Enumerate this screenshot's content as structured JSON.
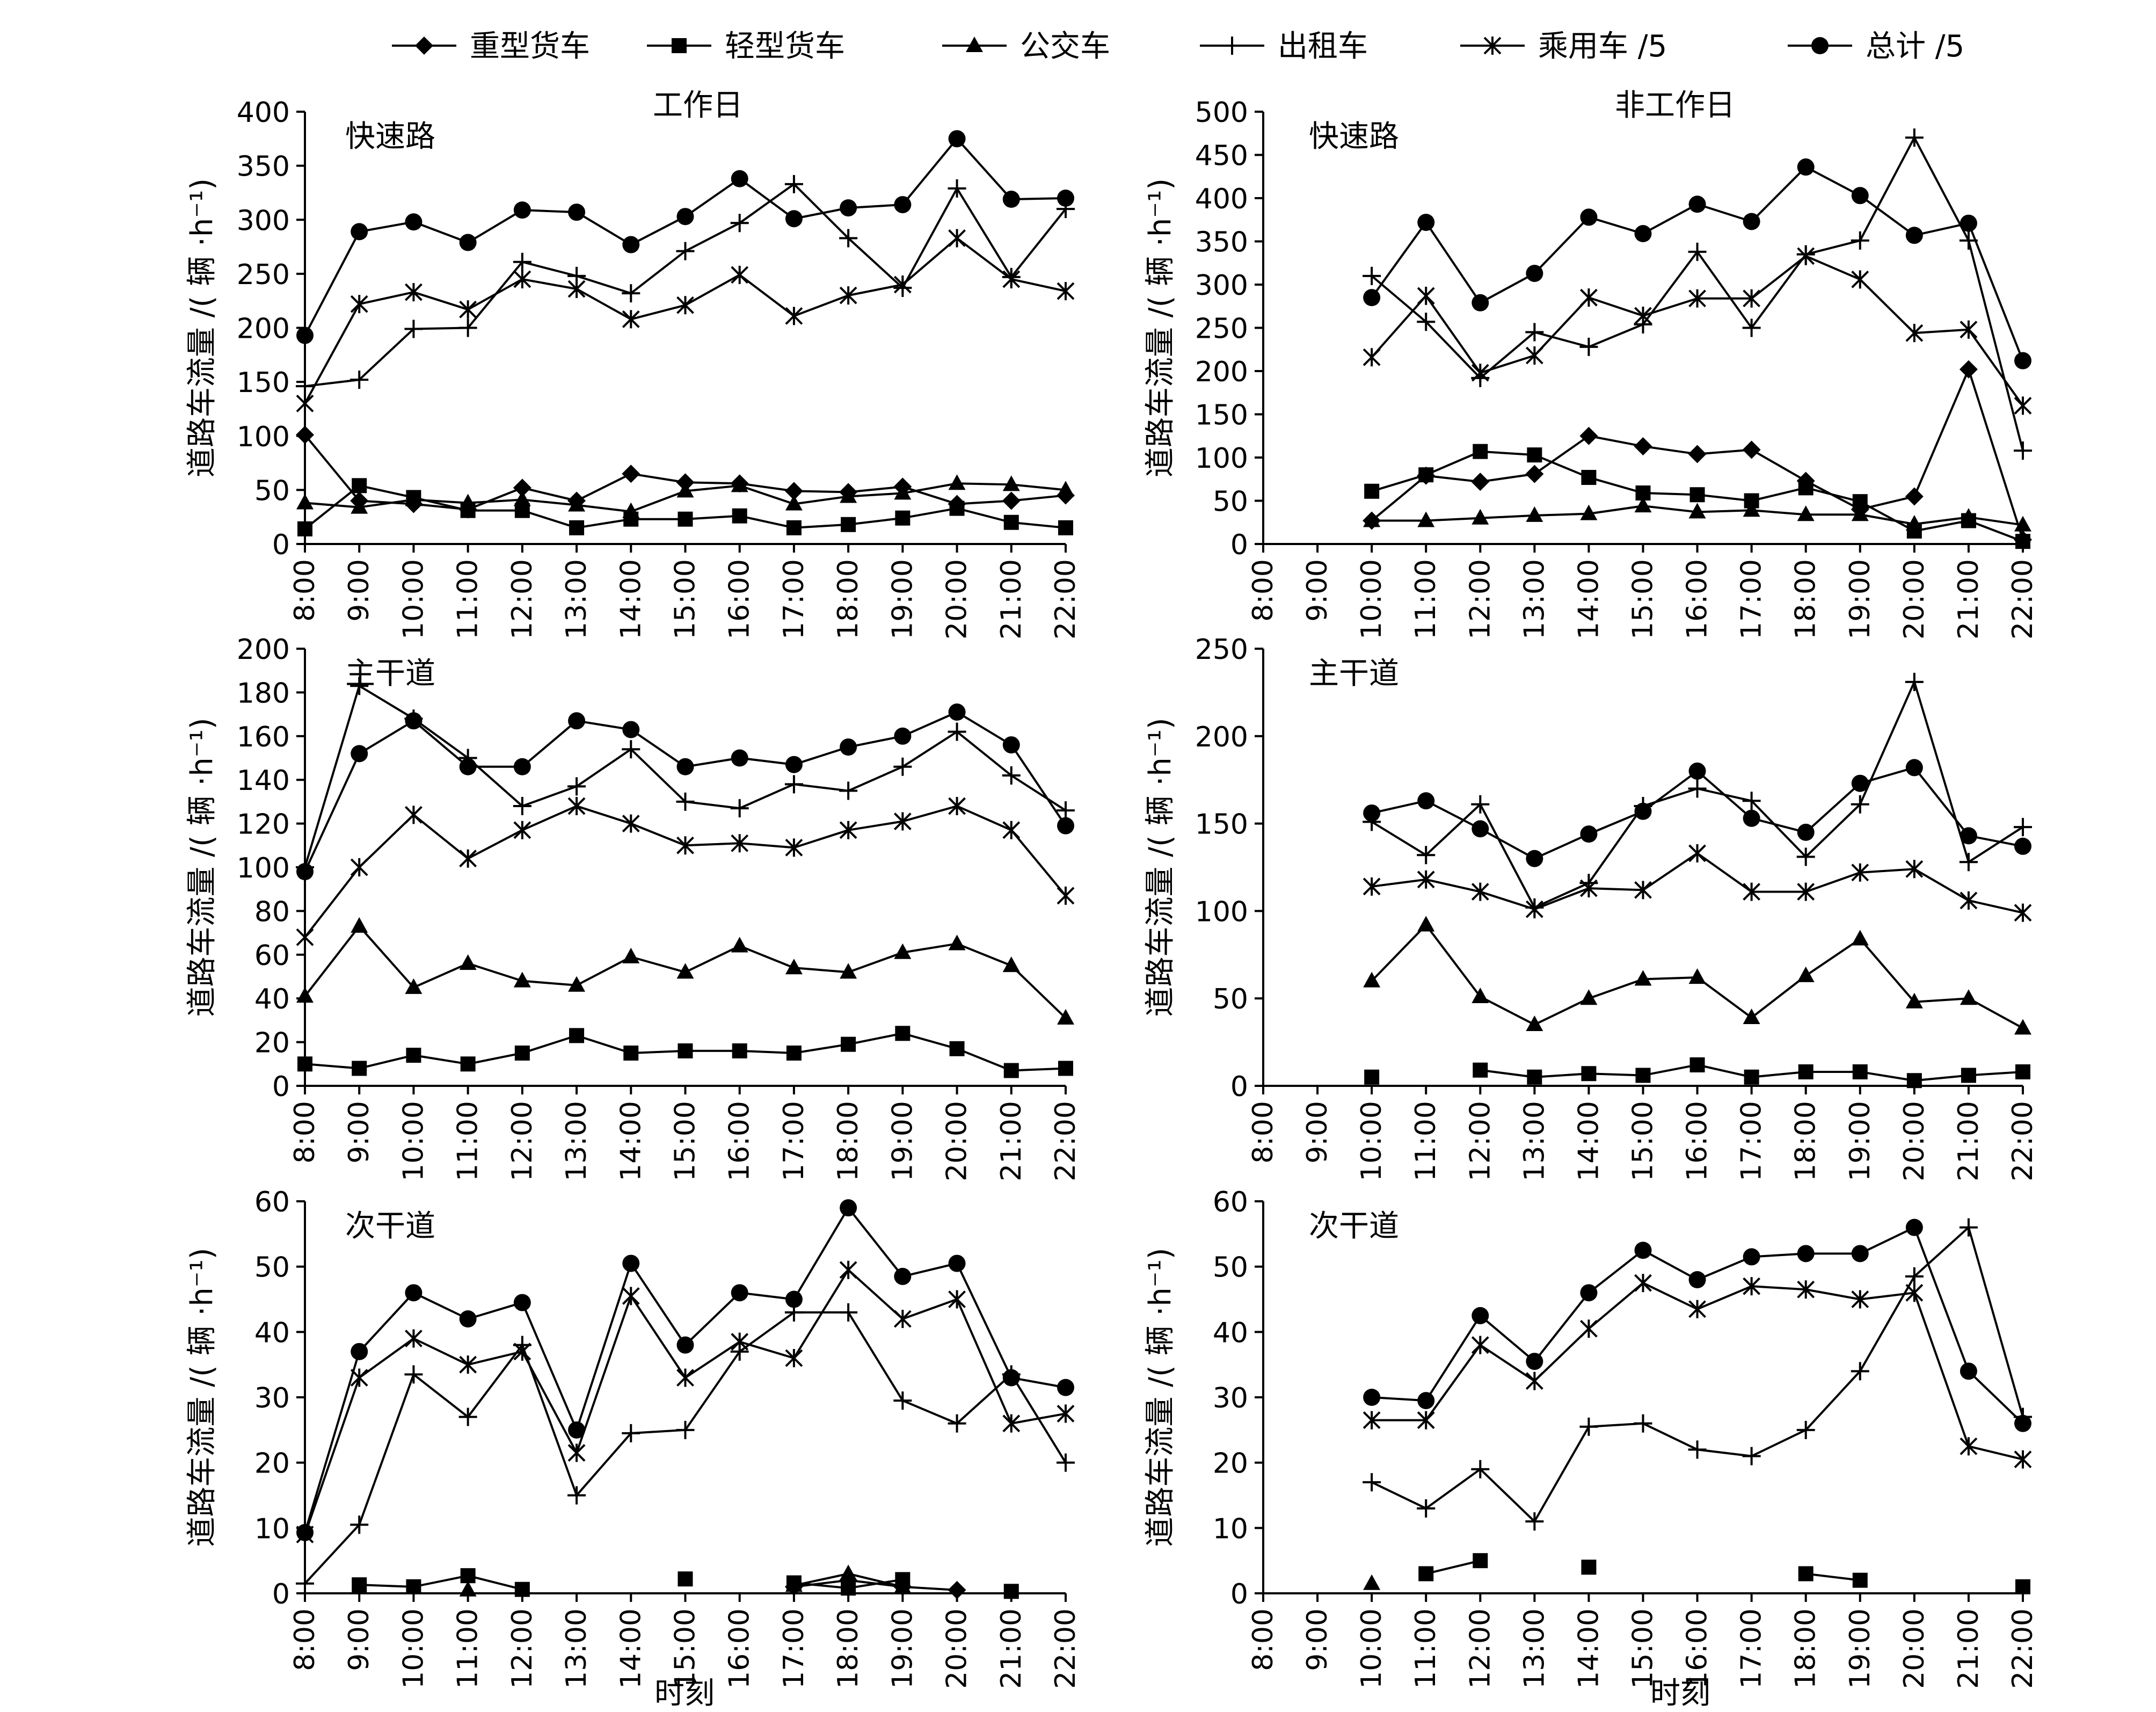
{
  "figure": {
    "legend": [
      {
        "name": "重型货车",
        "marker": "diamond"
      },
      {
        "name": "轻型货车",
        "marker": "square"
      },
      {
        "name": "公交车",
        "marker": "triangle"
      },
      {
        "name": "出租车",
        "marker": "plus"
      },
      {
        "name": "乘用车 /5",
        "marker": "asterisk"
      },
      {
        "name": "总计 /5",
        "marker": "circle"
      }
    ],
    "column_titles": [
      "工作日",
      "非工作日"
    ],
    "ylabel": "道路车流量 /( 辆 ·h⁻¹)",
    "xlabel": "时刻",
    "line_color": "#000000"
  },
  "chart_data": [
    {
      "type": "line",
      "panel": "工作日-快速路",
      "title": "快速路",
      "x": [
        "8:00",
        "9:00",
        "10:00",
        "11:00",
        "12:00",
        "13:00",
        "14:00",
        "15:00",
        "16:00",
        "17:00",
        "18:00",
        "19:00",
        "20:00",
        "21:00",
        "22:00"
      ],
      "yticks": [
        0,
        50,
        100,
        150,
        200,
        250,
        300,
        350,
        400
      ],
      "ylim": [
        0,
        400
      ],
      "series": [
        {
          "name": "重型货车",
          "values": [
            101,
            40,
            37,
            32,
            52,
            40,
            65,
            57,
            56,
            49,
            48,
            53,
            37,
            40,
            45
          ]
        },
        {
          "name": "轻型货车",
          "values": [
            14,
            54,
            43,
            31,
            31,
            15,
            23,
            23,
            26,
            15,
            18,
            24,
            33,
            20,
            15
          ]
        },
        {
          "name": "公交车",
          "values": [
            38,
            34,
            41,
            38,
            41,
            36,
            30,
            49,
            54,
            37,
            44,
            47,
            56,
            55,
            50
          ]
        },
        {
          "name": "出租车",
          "values": [
            146,
            152,
            199,
            200,
            261,
            248,
            232,
            271,
            297,
            333,
            283,
            237,
            329,
            247,
            310
          ]
        },
        {
          "name": "乘用车 /5",
          "values": [
            130,
            222,
            233,
            217,
            245,
            236,
            208,
            221,
            249,
            211,
            230,
            240,
            283,
            245,
            234
          ]
        },
        {
          "name": "总计 /5",
          "values": [
            193,
            289,
            298,
            279,
            309,
            307,
            277,
            303,
            338,
            301,
            311,
            314,
            375,
            319,
            320
          ]
        }
      ]
    },
    {
      "type": "line",
      "panel": "非工作日-快速路",
      "title": "快速路",
      "x": [
        "8:00",
        "9:00",
        "10:00",
        "11:00",
        "12:00",
        "13:00",
        "14:00",
        "15:00",
        "16:00",
        "17:00",
        "18:00",
        "19:00",
        "20:00",
        "21:00",
        "22:00"
      ],
      "yticks": [
        0,
        50,
        100,
        150,
        200,
        250,
        300,
        350,
        400,
        450,
        500
      ],
      "ylim": [
        0,
        500
      ],
      "series": [
        {
          "name": "重型货车",
          "values": [
            null,
            null,
            27,
            79,
            72,
            81,
            125,
            113,
            104,
            109,
            73,
            40,
            55,
            202,
            5
          ]
        },
        {
          "name": "轻型货车",
          "values": [
            null,
            null,
            61,
            80,
            107,
            103,
            77,
            59,
            57,
            50,
            65,
            49,
            15,
            27,
            3
          ]
        },
        {
          "name": "公交车",
          "values": [
            null,
            null,
            27,
            27,
            30,
            33,
            35,
            44,
            37,
            39,
            34,
            34,
            23,
            31,
            22
          ]
        },
        {
          "name": "出租车",
          "values": [
            null,
            null,
            310,
            257,
            192,
            245,
            228,
            254,
            338,
            250,
            335,
            351,
            470,
            351,
            108
          ]
        },
        {
          "name": "乘用车 /5",
          "values": [
            null,
            null,
            216,
            287,
            198,
            218,
            285,
            264,
            284,
            284,
            333,
            306,
            244,
            248,
            160
          ]
        },
        {
          "name": "总计 /5",
          "values": [
            null,
            null,
            285,
            372,
            279,
            313,
            378,
            359,
            393,
            373,
            436,
            403,
            357,
            371,
            212
          ]
        }
      ]
    },
    {
      "type": "line",
      "panel": "工作日-主干道",
      "title": "主干道",
      "x": [
        "8:00",
        "9:00",
        "10:00",
        "11:00",
        "12:00",
        "13:00",
        "14:00",
        "15:00",
        "16:00",
        "17:00",
        "18:00",
        "19:00",
        "20:00",
        "21:00",
        "22:00"
      ],
      "yticks": [
        0,
        20,
        40,
        60,
        80,
        100,
        120,
        140,
        160,
        180,
        200
      ],
      "ylim": [
        0,
        200
      ],
      "series": [
        {
          "name": "轻型货车",
          "values": [
            10,
            8,
            14,
            10,
            15,
            23,
            15,
            16,
            16,
            15,
            19,
            24,
            17,
            7,
            8
          ]
        },
        {
          "name": "公交车",
          "values": [
            41,
            73,
            45,
            56,
            48,
            46,
            59,
            52,
            64,
            54,
            52,
            61,
            65,
            55,
            31
          ]
        },
        {
          "name": "出租车",
          "values": [
            100,
            183,
            168,
            150,
            128,
            137,
            154,
            130,
            127,
            138,
            135,
            146,
            162,
            142,
            126
          ]
        },
        {
          "name": "乘用车 /5",
          "values": [
            68,
            100,
            124,
            104,
            117,
            128,
            120,
            110,
            111,
            109,
            117,
            121,
            128,
            117,
            87
          ]
        },
        {
          "name": "总计 /5",
          "values": [
            98,
            152,
            167,
            146,
            146,
            167,
            163,
            146,
            150,
            147,
            155,
            160,
            171,
            156,
            119
          ]
        }
      ]
    },
    {
      "type": "line",
      "panel": "非工作日-主干道",
      "title": "主干道",
      "x": [
        "8:00",
        "9:00",
        "10:00",
        "11:00",
        "12:00",
        "13:00",
        "14:00",
        "15:00",
        "16:00",
        "17:00",
        "18:00",
        "19:00",
        "20:00",
        "21:00",
        "22:00"
      ],
      "yticks": [
        0,
        50,
        100,
        150,
        200,
        250
      ],
      "ylim": [
        0,
        250
      ],
      "series": [
        {
          "name": "轻型货车",
          "values": [
            null,
            null,
            5,
            null,
            9,
            5,
            7,
            6,
            12,
            5,
            8,
            8,
            3,
            6,
            8
          ]
        },
        {
          "name": "公交车",
          "values": [
            null,
            null,
            60,
            92,
            51,
            35,
            50,
            61,
            62,
            39,
            63,
            84,
            48,
            50,
            33
          ]
        },
        {
          "name": "出租车",
          "values": [
            null,
            null,
            151,
            132,
            161,
            102,
            116,
            160,
            170,
            163,
            131,
            161,
            231,
            128,
            148
          ]
        },
        {
          "name": "乘用车 /5",
          "values": [
            null,
            null,
            114,
            118,
            111,
            101,
            113,
            112,
            133,
            111,
            111,
            122,
            124,
            106,
            99
          ]
        },
        {
          "name": "总计 /5",
          "values": [
            null,
            null,
            156,
            163,
            147,
            130,
            144,
            157,
            180,
            153,
            145,
            173,
            182,
            143,
            137
          ]
        }
      ]
    },
    {
      "type": "line",
      "panel": "工作日-次干道",
      "title": "次干道",
      "xlabel": "时刻",
      "x": [
        "8:00",
        "9:00",
        "10:00",
        "11:00",
        "12:00",
        "13:00",
        "14:00",
        "15:00",
        "16:00",
        "17:00",
        "18:00",
        "19:00",
        "20:00",
        "21:00",
        "22:00"
      ],
      "yticks": [
        0,
        10,
        20,
        30,
        40,
        50,
        60
      ],
      "ylim": [
        0,
        60
      ],
      "series": [
        {
          "name": "重型货车",
          "values": [
            null,
            null,
            null,
            null,
            null,
            null,
            null,
            null,
            null,
            1,
            2,
            1,
            0.5,
            null,
            null
          ]
        },
        {
          "name": "轻型货车",
          "values": [
            null,
            1.3,
            1,
            2.7,
            0.6,
            null,
            null,
            2.2,
            null,
            1.6,
            0.8,
            2.1,
            null,
            0.3,
            null
          ]
        },
        {
          "name": "公交车",
          "values": [
            null,
            null,
            null,
            0.5,
            null,
            null,
            null,
            null,
            null,
            1.2,
            3,
            1,
            null,
            null,
            null
          ]
        },
        {
          "name": "出租车",
          "values": [
            1.5,
            10.5,
            33.5,
            27,
            38,
            15,
            24.5,
            25,
            37,
            43,
            43,
            29.5,
            26,
            33.5,
            20
          ]
        },
        {
          "name": "乘用车 /5",
          "values": [
            9,
            33,
            39,
            35,
            37,
            21.5,
            45.5,
            33,
            38.5,
            36,
            49.5,
            42,
            45,
            26,
            27.5
          ]
        },
        {
          "name": "总计 /5",
          "values": [
            9.3,
            37,
            46,
            42,
            44.5,
            25,
            50.5,
            38,
            46,
            45,
            59,
            48.5,
            50.5,
            33,
            31.5
          ]
        }
      ]
    },
    {
      "type": "line",
      "panel": "非工作日-次干道",
      "title": "次干道",
      "xlabel": "时刻",
      "x": [
        "8:00",
        "9:00",
        "10:00",
        "11:00",
        "12:00",
        "13:00",
        "14:00",
        "15:00",
        "16:00",
        "17:00",
        "18:00",
        "19:00",
        "20:00",
        "21:00",
        "22:00"
      ],
      "yticks": [
        0,
        10,
        20,
        30,
        40,
        50,
        60
      ],
      "ylim": [
        0,
        60
      ],
      "series": [
        {
          "name": "轻型货车",
          "values": [
            null,
            null,
            null,
            3,
            5,
            null,
            4,
            null,
            null,
            null,
            3,
            2,
            null,
            null,
            1
          ]
        },
        {
          "name": "公交车",
          "values": [
            null,
            null,
            1.5,
            null,
            null,
            null,
            null,
            null,
            null,
            null,
            null,
            null,
            null,
            null,
            null
          ]
        },
        {
          "name": "出租车",
          "values": [
            null,
            null,
            17,
            13,
            19,
            11,
            25.5,
            26,
            22,
            21,
            25,
            34,
            48.5,
            56,
            27
          ]
        },
        {
          "name": "乘用车 /5",
          "values": [
            null,
            null,
            26.5,
            26.5,
            38,
            32.5,
            40.5,
            47.5,
            43.5,
            47,
            46.5,
            45,
            46,
            22.5,
            20.5
          ]
        },
        {
          "name": "总计 /5",
          "values": [
            null,
            null,
            30,
            29.5,
            42.5,
            35.5,
            46,
            52.5,
            48,
            51.5,
            52,
            52,
            56,
            34,
            26
          ]
        }
      ]
    }
  ]
}
